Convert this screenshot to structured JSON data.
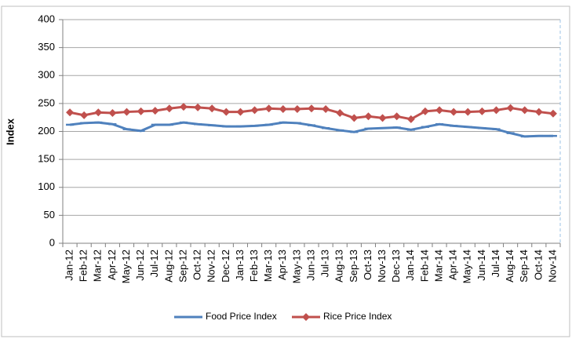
{
  "chart_data": {
    "type": "line",
    "y_label": "Index",
    "categories": [
      "Jan-12",
      "Feb-12",
      "Mar-12",
      "Apr-12",
      "May-12",
      "Jun-12",
      "Jul-12",
      "Aug-12",
      "Sep-12",
      "Oct-12",
      "Nov-12",
      "Dec-12",
      "Jan-13",
      "Feb-13",
      "Mar-13",
      "Apr-13",
      "May-13",
      "Jun-13",
      "Jul-13",
      "Aug-13",
      "Sep-13",
      "Oct-13",
      "Nov-13",
      "Dec-13",
      "Jan-14",
      "Feb-14",
      "Mar-14",
      "Apr-14",
      "May-14",
      "Jun-14",
      "Jul-14",
      "Aug-14",
      "Sep-14",
      "Oct-14",
      "Nov-14"
    ],
    "series": [
      {
        "name": "Food Price Index",
        "color": "#4f81bd",
        "marker": "dash",
        "values": [
          212,
          215,
          216,
          213,
          204,
          201,
          212,
          212,
          216,
          213,
          211,
          209,
          209,
          210,
          212,
          216,
          215,
          211,
          206,
          202,
          199,
          205,
          206,
          207,
          203,
          208,
          213,
          210,
          208,
          206,
          204,
          197,
          191,
          192,
          192
        ]
      },
      {
        "name": "Rice Price Index",
        "color": "#c0504d",
        "marker": "diamond",
        "values": [
          234,
          229,
          234,
          233,
          235,
          236,
          237,
          241,
          244,
          243,
          241,
          235,
          235,
          238,
          241,
          240,
          240,
          241,
          240,
          233,
          224,
          227,
          224,
          227,
          222,
          236,
          238,
          235,
          235,
          236,
          238,
          242,
          238,
          235,
          232
        ]
      }
    ],
    "ylim": [
      0,
      400
    ],
    "yticks": [
      0,
      50,
      100,
      150,
      200,
      250,
      300,
      350,
      400
    ],
    "grid": true,
    "legend": "bottom"
  }
}
